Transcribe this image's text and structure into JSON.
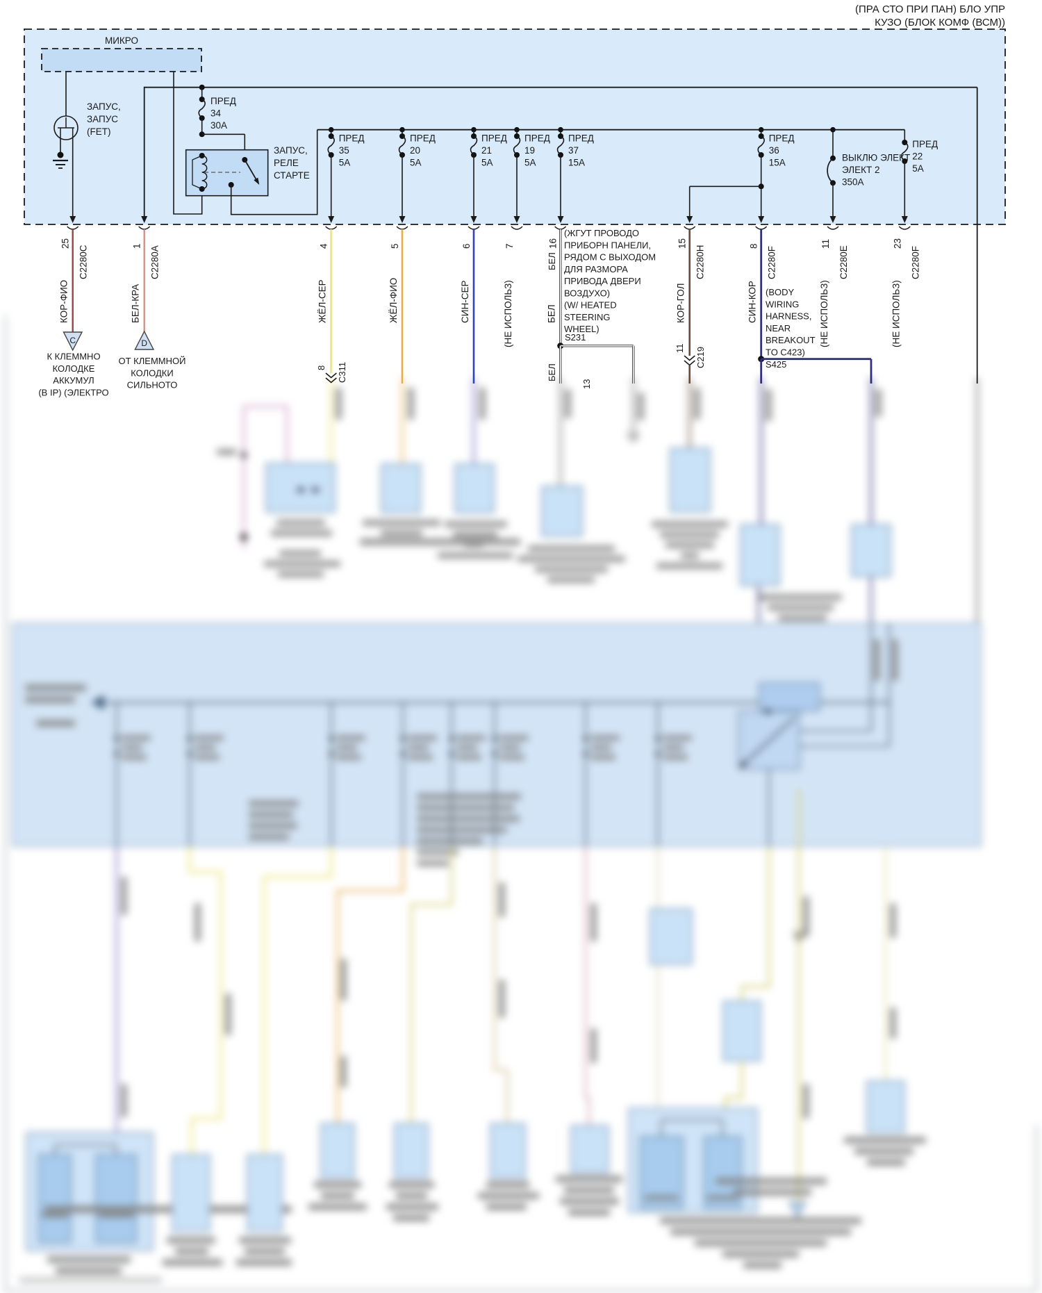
{
  "header": {
    "line1": "(ПРА СТО ПРИ ПАН) БЛО УПР",
    "line2": "КУЗО (БЛОК КОМФ (ВСМ))"
  },
  "top_box": {
    "micro_label": "МИКРО",
    "fet": {
      "lines": [
        "ЗАПУС,",
        "ЗАПУС",
        "(FET)"
      ]
    },
    "relay": {
      "lines": [
        "ЗАПУС,",
        "РЕЛЕ",
        "СТАРТЕ"
      ]
    },
    "fuse34": {
      "name": "ПРЕД",
      "num": "34",
      "amp": "30А"
    },
    "fuses": [
      {
        "name": "ПРЕД",
        "num": "35",
        "amp": "5А"
      },
      {
        "name": "ПРЕД",
        "num": "20",
        "amp": "5А"
      },
      {
        "name": "ПРЕД",
        "num": "21",
        "amp": "5А"
      },
      {
        "name": "ПРЕД",
        "num": "19",
        "amp": "5А"
      },
      {
        "name": "ПРЕД",
        "num": "37",
        "amp": "15А"
      },
      {
        "name": "ПРЕД",
        "num": "36",
        "amp": "15А"
      },
      {
        "name": "ПРЕД",
        "num": "22",
        "amp": "5А"
      }
    ],
    "switch350": {
      "lines": [
        "ВЫКЛЮ ЭЛЕКТ",
        "ЭЛЕКТ 2",
        "350А"
      ]
    }
  },
  "pins": [
    {
      "pin": "25",
      "connector": "C2280C",
      "color": "КОР-ФИО",
      "note": ""
    },
    {
      "pin": "1",
      "connector": "C2280A",
      "color": "БЕЛ-КРА",
      "note": ""
    },
    {
      "pin": "4",
      "connector": "",
      "color": "ЖЁЛ-СЕР",
      "note": ""
    },
    {
      "pin": "5",
      "connector": "",
      "color": "ЖЁЛ-ФИО",
      "note": ""
    },
    {
      "pin": "6",
      "connector": "",
      "color": "СИН-СЕР",
      "note": ""
    },
    {
      "pin": "7",
      "connector": "",
      "color": "",
      "note": "(НЕ ИСПОЛЬЗ)"
    },
    {
      "pin": "16",
      "connector": "",
      "color": "БЕЛ",
      "note": ""
    },
    {
      "pin": "15",
      "connector": "С2280Н",
      "color": "КОР-ГОЛ",
      "note": ""
    },
    {
      "pin": "8",
      "connector": "C2280F",
      "color": "СИН-КОР",
      "note": ""
    },
    {
      "pin": "11",
      "connector": "C2280E",
      "color": "",
      "note": "(НЕ ИСПОЛЬЗ)"
    },
    {
      "pin": "23",
      "connector": "C2280F",
      "color": "",
      "note": "(НЕ ИСПОЛЬЗ)"
    }
  ],
  "terminals": {
    "c": {
      "letter": "C",
      "lines": [
        "К КЛЕММНО",
        "КОЛОДКЕ",
        "АККУМУЛ",
        "(В IP) (ЭЛЕКТРО"
      ]
    },
    "d": {
      "letter": "D",
      "lines": [
        "ОТ КЛЕММНОЙ",
        "КОЛОДКИ",
        "СИЛЬНОТО"
      ]
    }
  },
  "notes": {
    "s231": {
      "lines": [
        "(ЖГУТ ПРОВОДО",
        "ПРИБОРН ПАНЕЛИ,",
        "РЯДОМ С ВЫХОДОМ",
        "ДЛЯ РАЗМОРА",
        "ПРИВОДА ДВЕРИ",
        "ВОЗДУХО)",
        "(W/ HEATED",
        "STEERING",
        "WHEEL)"
      ],
      "label": "S231"
    },
    "s425": {
      "lines": [
        "(BODY",
        "WIRING",
        "HARNESS,",
        "NEAR",
        "BREAKOUT",
        "TO C423)"
      ],
      "label": "S425"
    },
    "bel_upper": "БЕЛ",
    "bel_lower": "БЕЛ",
    "tag13": "13"
  },
  "inline_connectors": {
    "c311": {
      "pin": "8",
      "label": "C311"
    },
    "c219": {
      "pin": "11",
      "label": "C219"
    }
  },
  "colors": {
    "box_fill": "#d9eafb",
    "inner_fill": "#c3dcf5",
    "band_fill": "#d3e4f6",
    "comp_fill": "#c9e2f7",
    "comp_inner": "#a8ccee",
    "wire_kor_fio": "#9c4040",
    "wire_bel_kra": "#d4887c",
    "wire_zhel_ser": "#eee884",
    "wire_zhel_fio": "#e8833a",
    "wire_sin_ser": "#3344bb",
    "wire_kor_gol": "#6b4a36",
    "wire_sin_kor": "#30307c",
    "wire_pink": "#cc8fc0",
    "wire_purple": "#8878c8",
    "wire_olive": "#d6d37e",
    "wire_orange": "#e8b060",
    "wire_rose": "#d8a8b4"
  }
}
